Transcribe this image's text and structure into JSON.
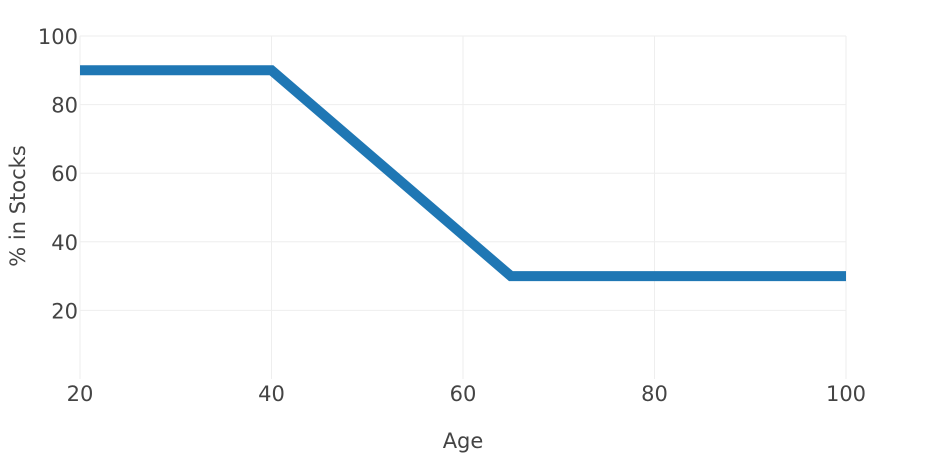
{
  "chart_data": {
    "type": "line",
    "title": "",
    "xlabel": "Age",
    "ylabel": "% in Stocks",
    "xlim": [
      20,
      100
    ],
    "ylim": [
      0,
      100
    ],
    "x_ticks": [
      20,
      40,
      60,
      80,
      100
    ],
    "y_ticks": [
      20,
      40,
      60,
      80,
      100
    ],
    "grid": true,
    "legend": "none",
    "series": [
      {
        "color": "#1f77b4",
        "x": [
          20,
          40,
          65,
          100
        ],
        "y": [
          90,
          90,
          30,
          30
        ]
      }
    ]
  }
}
